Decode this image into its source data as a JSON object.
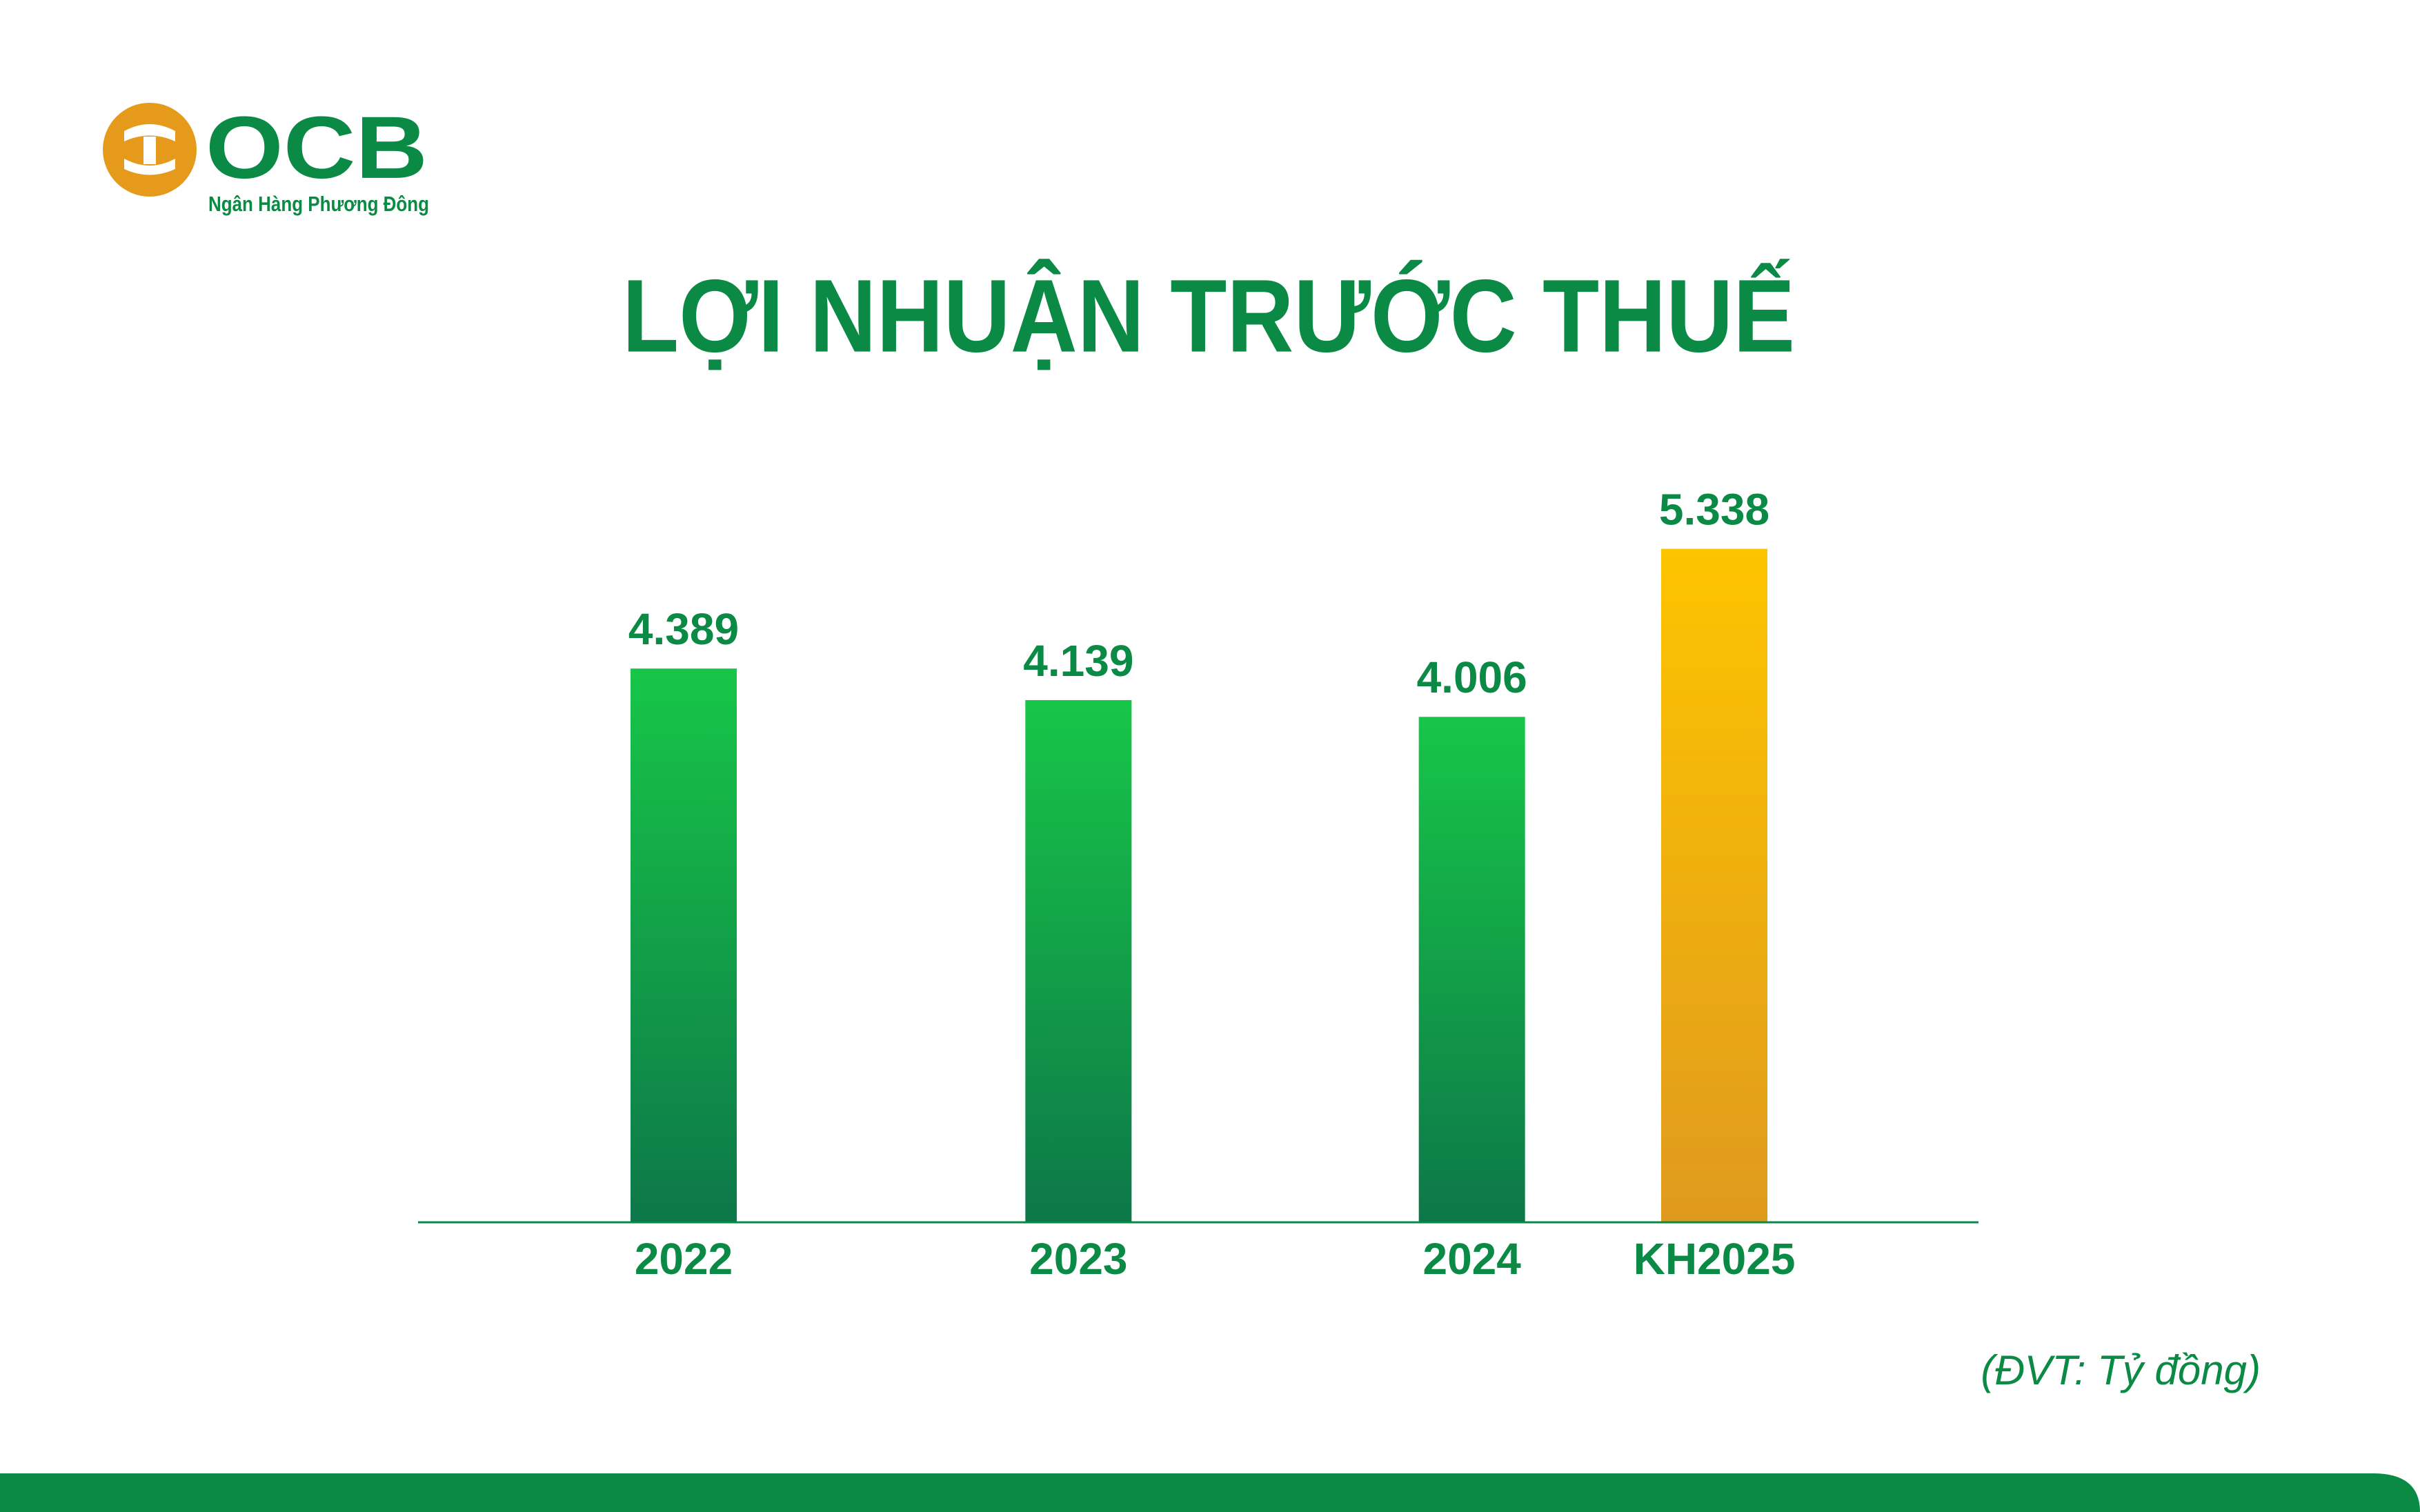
{
  "logo": {
    "name": "OCB",
    "tagline": "Ngân Hàng Phương Đông"
  },
  "chart_data": {
    "type": "bar",
    "title": "LỢI NHUẬN TRƯỚC THUẾ",
    "categories": [
      "2022",
      "2023",
      "2024",
      "KH2025"
    ],
    "values": [
      4389,
      4139,
      4006,
      5338
    ],
    "value_labels": [
      "4.389",
      "4.139",
      "4.006",
      "5.338"
    ],
    "colors": [
      "#17c648",
      "#17c648",
      "#17c648",
      "#fdc400"
    ],
    "ylim": [
      0,
      5500
    ],
    "unit_note": "(ĐVT: Tỷ đồng)"
  }
}
